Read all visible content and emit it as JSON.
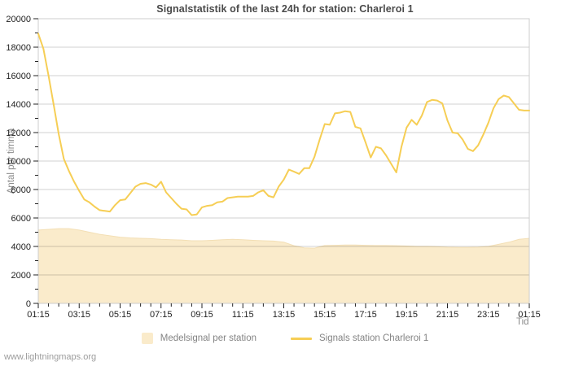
{
  "watermark": "www.lightningmaps.org",
  "chart_data": {
    "type": "line",
    "title": "Signalstatistik of the last 24h for station: Charleroi 1",
    "xlabel": "Tid",
    "ylabel": "Antal per timma",
    "ylim": [
      0,
      20000
    ],
    "grid": true,
    "legend_position": "bottom",
    "y_ticks": [
      0,
      2000,
      4000,
      6000,
      8000,
      10000,
      12000,
      14000,
      16000,
      18000,
      20000
    ],
    "y_minor_step": 1000,
    "x_tick_labels": [
      "01:15",
      "03:15",
      "05:15",
      "07:15",
      "09:15",
      "11:15",
      "13:15",
      "15:15",
      "17:15",
      "19:15",
      "21:15",
      "23:15",
      "01:15"
    ],
    "x_minor_per_major": 4,
    "colors": {
      "line": "#f6ce55",
      "area_fill": "#faebcb",
      "area_stroke": "#f3dfb5",
      "grid": "#d0d0d0",
      "border": "#cccccc",
      "tick": "#222222",
      "tick_label": "#222222"
    },
    "series": [
      {
        "name": "Medelsignal per station",
        "type": "area",
        "color": "#faebcb",
        "interval_minutes": 30,
        "start_time": "01:15",
        "values": [
          5150,
          5200,
          5250,
          5250,
          5150,
          5000,
          4850,
          4750,
          4650,
          4600,
          4570,
          4550,
          4500,
          4470,
          4450,
          4400,
          4400,
          4430,
          4470,
          4500,
          4470,
          4430,
          4400,
          4380,
          4300,
          4050,
          3900,
          3880,
          4060,
          4080,
          4100,
          4100,
          4080,
          4060,
          4060,
          4050,
          4030,
          4000,
          4000,
          3980,
          3950,
          3940,
          3940,
          3950,
          4000,
          4150,
          4300,
          4500,
          4570
        ]
      },
      {
        "name": "Signals station Charleroi 1",
        "type": "line",
        "color": "#f6ce55",
        "interval_minutes": 15,
        "start_time": "01:15",
        "values": [
          18950,
          17900,
          16000,
          14000,
          11900,
          10150,
          9300,
          8550,
          7900,
          7300,
          7100,
          6800,
          6550,
          6500,
          6450,
          6900,
          7250,
          7300,
          7750,
          8200,
          8400,
          8450,
          8350,
          8150,
          8550,
          7800,
          7400,
          7000,
          6650,
          6600,
          6200,
          6250,
          6750,
          6850,
          6900,
          7100,
          7150,
          7400,
          7450,
          7500,
          7500,
          7500,
          7550,
          7800,
          7950,
          7550,
          7450,
          8200,
          8700,
          9400,
          9250,
          9100,
          9500,
          9500,
          10300,
          11500,
          12600,
          12550,
          13350,
          13400,
          13500,
          13450,
          12400,
          12300,
          11300,
          10250,
          11000,
          10900,
          10400,
          9800,
          9200,
          11000,
          12350,
          12900,
          12550,
          13200,
          14150,
          14300,
          14250,
          14050,
          12850,
          12000,
          11950,
          11500,
          10850,
          10700,
          11100,
          11850,
          12700,
          13700,
          14350,
          14600,
          14500,
          14050,
          13600,
          13550,
          13550
        ]
      }
    ]
  }
}
